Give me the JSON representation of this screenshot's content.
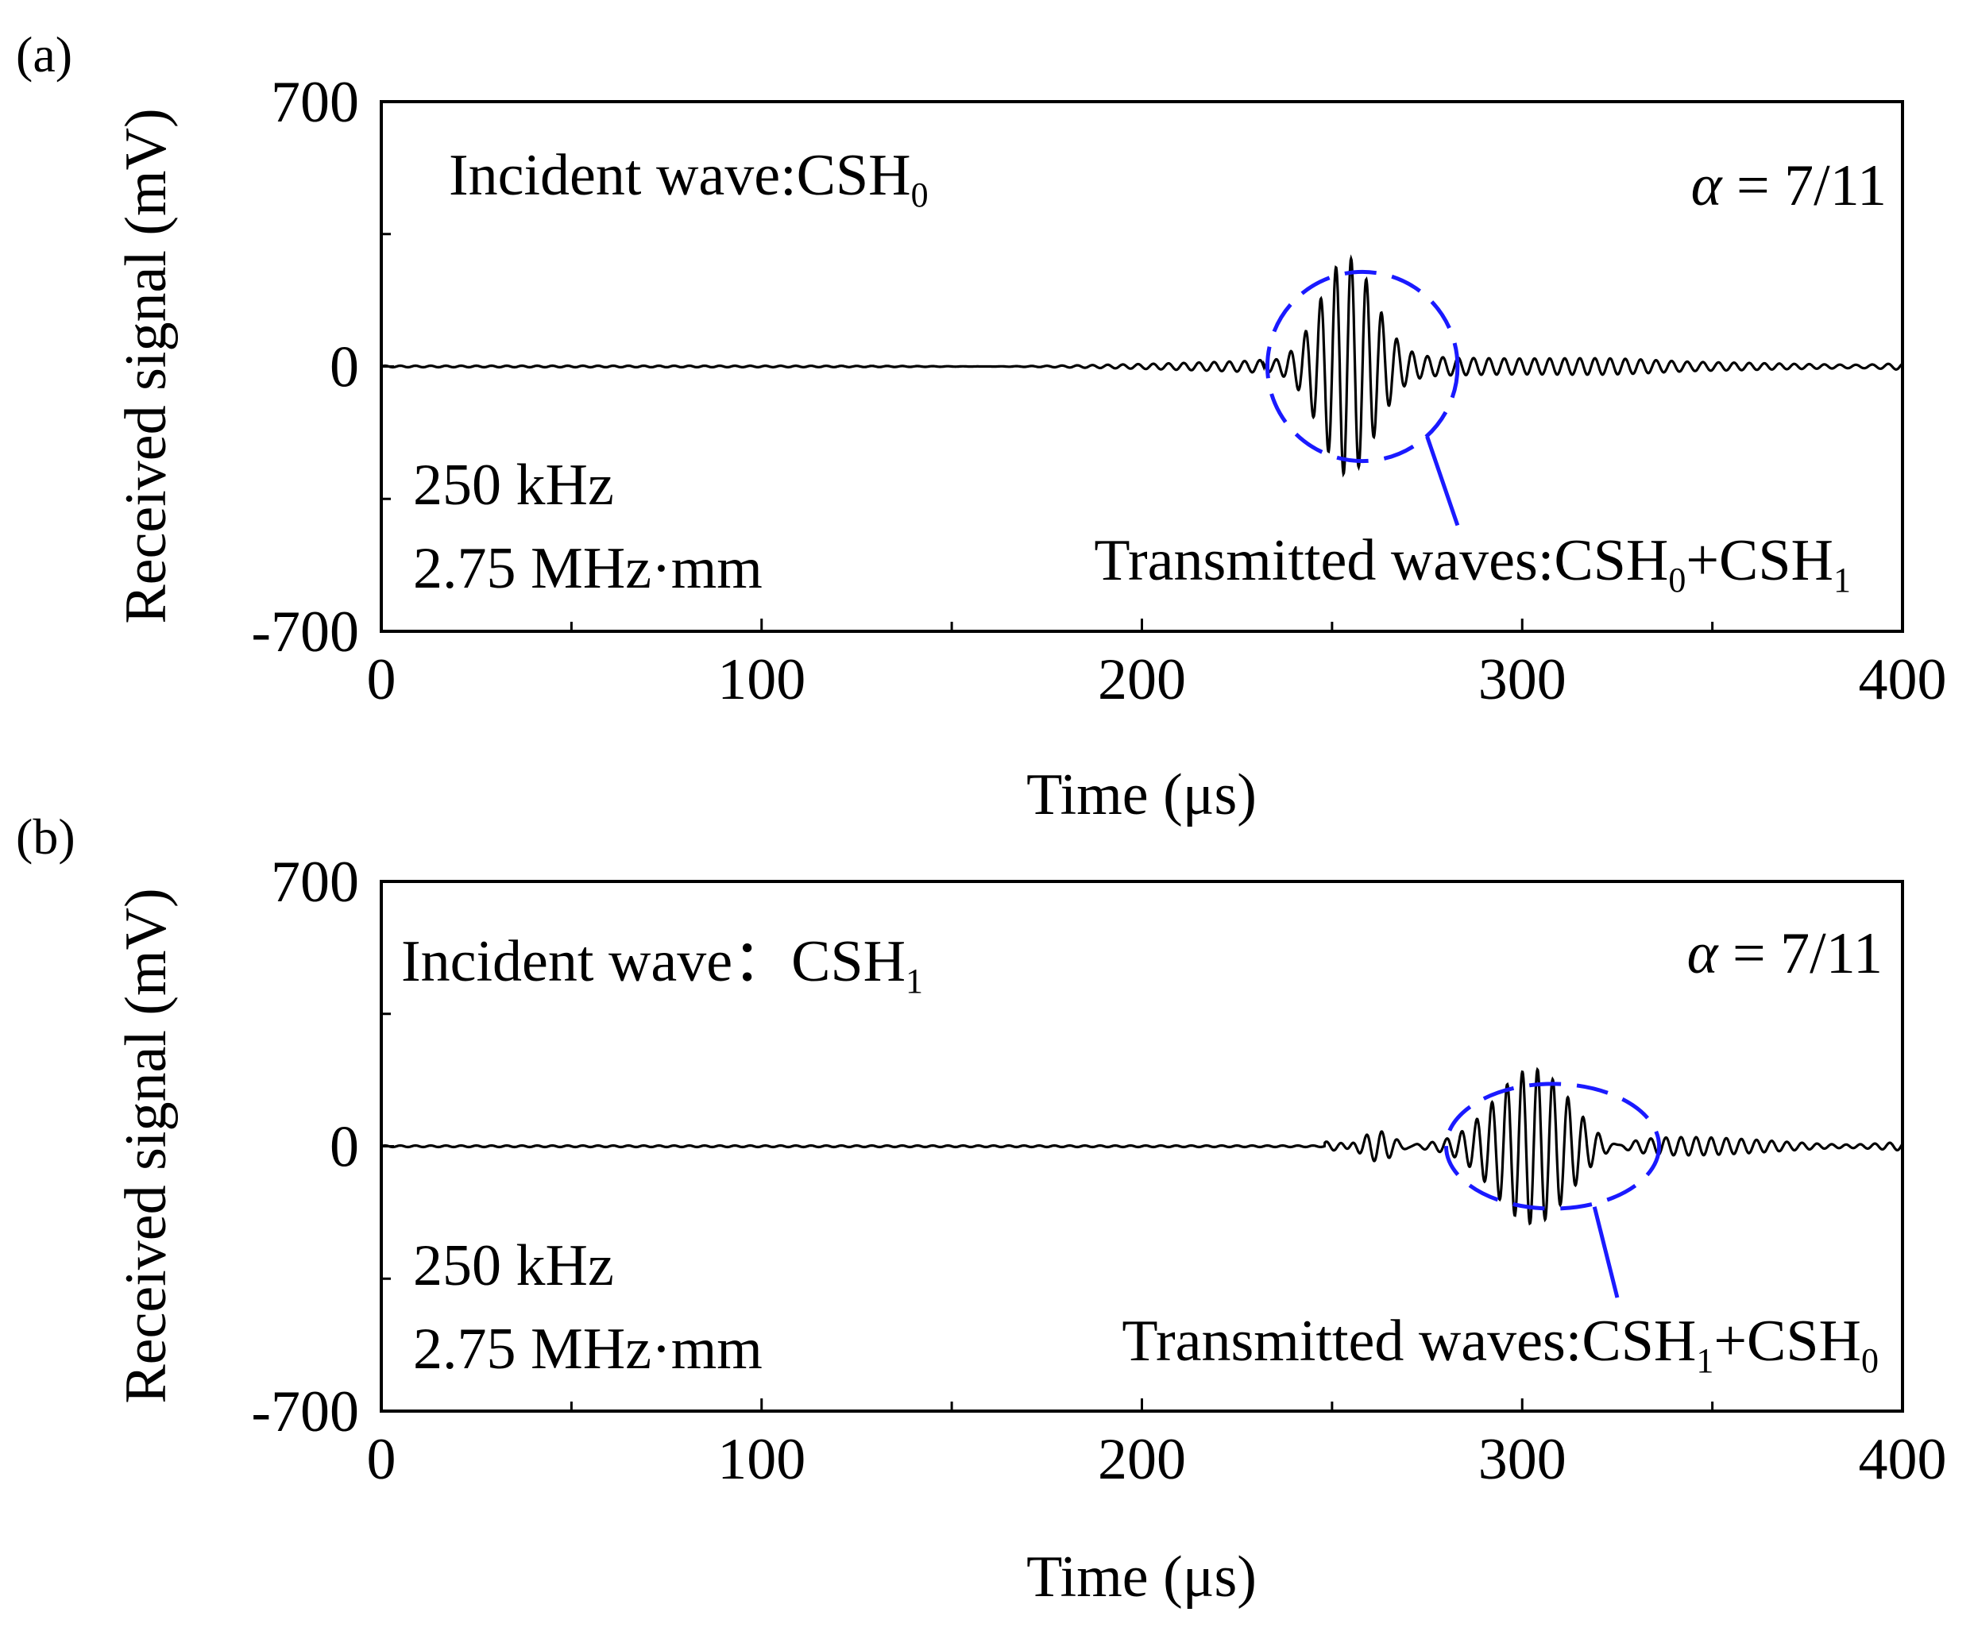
{
  "chart_data": [
    {
      "type": "line",
      "panel_label": "(a)",
      "xlabel": "Time (μs)",
      "ylabel": "Received signal (mV)",
      "xlim": [
        0,
        400
      ],
      "ylim": [
        -700,
        700
      ],
      "xticks": [
        "0",
        "100",
        "200",
        "300",
        "400"
      ],
      "yticks": [
        "700",
        "0",
        "-700"
      ],
      "annotations": {
        "incident": {
          "text": "Incident wave:CSH",
          "sub": "0"
        },
        "alpha": {
          "symbol": "α",
          "text": " = 7/11"
        },
        "freq": "250 kHz",
        "fd": "2.75 MHz·mm",
        "transmitted": {
          "text": "Transmitted waves:CSH",
          "sub1": "0",
          "mid": "+CSH",
          "sub2": "1"
        }
      },
      "circle": {
        "cx": 258,
        "cy": 0,
        "rx": 25,
        "ry": 250
      },
      "leader": {
        "from": [
          275,
          -185
        ],
        "to": [
          283,
          -420
        ]
      },
      "signal": {
        "baseline": 0,
        "packets": [
          {
            "center": 254,
            "amplitude": 270,
            "width": 10,
            "freq": 0.25
          },
          {
            "center": 290,
            "amplitude": 30,
            "width": 80,
            "freq": 0.25
          }
        ],
        "noise_start": 232,
        "duration": 400
      }
    },
    {
      "type": "line",
      "panel_label": "(b)",
      "xlabel": "Time (μs)",
      "ylabel": "Received signal (mV)",
      "xlim": [
        0,
        400
      ],
      "ylim": [
        -700,
        700
      ],
      "xticks": [
        "0",
        "100",
        "200",
        "300",
        "400"
      ],
      "yticks": [
        "700",
        "0",
        "-700"
      ],
      "annotations": {
        "incident": {
          "text": "Incident wave：CSH",
          "sub": "1"
        },
        "alpha": {
          "symbol": "α",
          "text": " = 7/11"
        },
        "freq": "250 kHz",
        "fd": "2.75 MHz·mm",
        "transmitted": {
          "text": "Transmitted waves:CSH",
          "sub1": "1",
          "mid": "+CSH",
          "sub2": "0"
        }
      },
      "circle": {
        "cx": 308,
        "cy": 0,
        "rx": 28,
        "ry": 165
      },
      "leader": {
        "from": [
          319,
          -160
        ],
        "to": [
          325,
          -400
        ]
      },
      "signal": {
        "baseline": 0,
        "packets": [
          {
            "center": 262,
            "amplitude": 45,
            "width": 6,
            "freq": 0.25
          },
          {
            "center": 303,
            "amplitude": 200,
            "width": 14,
            "freq": 0.25
          },
          {
            "center": 345,
            "amplitude": 30,
            "width": 30,
            "freq": 0.25
          }
        ],
        "noise_start": 248,
        "duration": 400
      }
    }
  ]
}
